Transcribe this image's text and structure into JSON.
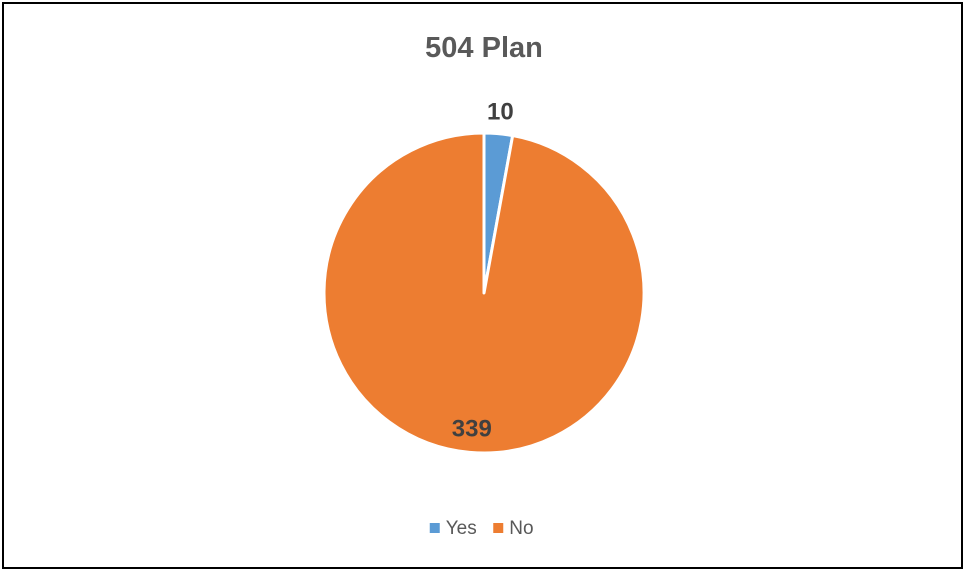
{
  "chart_data": {
    "type": "pie",
    "title": "504 Plan",
    "categories": [
      "Yes",
      "No"
    ],
    "values": [
      10,
      339
    ],
    "colors": [
      "#5B9BD5",
      "#ED7D31"
    ],
    "data_labels": [
      "10",
      "339"
    ],
    "legend": {
      "placement": "bottom",
      "entries": [
        "Yes",
        "No"
      ]
    }
  }
}
